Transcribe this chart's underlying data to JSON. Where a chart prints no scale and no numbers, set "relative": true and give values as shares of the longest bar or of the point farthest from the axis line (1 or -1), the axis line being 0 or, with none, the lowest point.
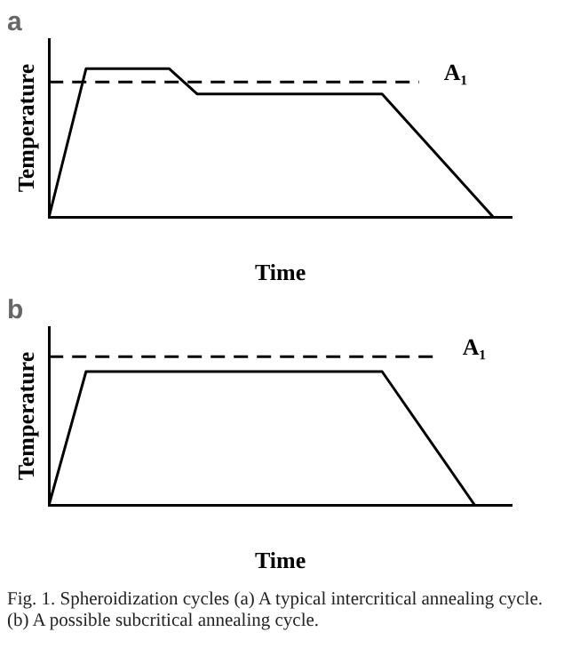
{
  "chart_data": [
    {
      "type": "line",
      "title": "a",
      "xlabel": "Time",
      "ylabel": "Temperature",
      "relative": true,
      "grid": false,
      "legend": false,
      "marker": "none",
      "categories": [
        null,
        null,
        null,
        null,
        null,
        null,
        null,
        null,
        null,
        null,
        null,
        null,
        null,
        null,
        null,
        null,
        null,
        null,
        null,
        null,
        null,
        null,
        null,
        null,
        null,
        null,
        null,
        null,
        null,
        null,
        null,
        null,
        null,
        null,
        null,
        null,
        null,
        null,
        null,
        null,
        null,
        null,
        null,
        null,
        null,
        null,
        null,
        null,
        null,
        null,
        null
      ],
      "series": [
        {
          "values": [
            0,
            null,
            null,
            null,
            1,
            null,
            null,
            null,
            null,
            null,
            null,
            null,
            null,
            1,
            null,
            null,
            0.83,
            null,
            null,
            null,
            null,
            null,
            null,
            null,
            null,
            null,
            null,
            null,
            null,
            null,
            null,
            null,
            null,
            null,
            null,
            null,
            0.83,
            null,
            null,
            null,
            null,
            null,
            null,
            null,
            null,
            null,
            null,
            null,
            0,
            null,
            null
          ],
          "color": "#000000",
          "line_style": "solid"
        },
        {
          "name": "A₁",
          "values": [
            0.91,
            null,
            null,
            null,
            null,
            null,
            null,
            null,
            null,
            null,
            null,
            null,
            null,
            null,
            null,
            null,
            null,
            null,
            null,
            null,
            null,
            null,
            null,
            null,
            null,
            null,
            null,
            null,
            null,
            null,
            null,
            null,
            null,
            null,
            null,
            null,
            null,
            null,
            null,
            null,
            0.91,
            null,
            null,
            null,
            null,
            null,
            null,
            null,
            null,
            null,
            null
          ],
          "color": "#000000",
          "line_style": "dashed"
        }
      ]
    },
    {
      "type": "line",
      "title": "b",
      "xlabel": "Time",
      "ylabel": "Temperature",
      "relative": true,
      "grid": false,
      "legend": false,
      "marker": "none",
      "categories": [
        null,
        null,
        null,
        null,
        null,
        null,
        null,
        null,
        null,
        null,
        null,
        null,
        null,
        null,
        null,
        null,
        null,
        null,
        null,
        null,
        null,
        null,
        null,
        null,
        null,
        null,
        null,
        null,
        null,
        null,
        null,
        null,
        null,
        null,
        null,
        null,
        null,
        null,
        null,
        null,
        null,
        null,
        null,
        null,
        null,
        null,
        null,
        null,
        null,
        null,
        null
      ],
      "series": [
        {
          "values": [
            0,
            null,
            null,
            null,
            0.9,
            null,
            null,
            null,
            null,
            null,
            null,
            null,
            null,
            null,
            null,
            null,
            null,
            null,
            null,
            null,
            null,
            null,
            null,
            null,
            null,
            null,
            null,
            null,
            null,
            null,
            null,
            null,
            null,
            null,
            null,
            null,
            0.9,
            null,
            null,
            null,
            null,
            null,
            null,
            null,
            null,
            null,
            0,
            null,
            null,
            null,
            null
          ],
          "color": "#000000",
          "line_style": "solid"
        },
        {
          "name": "A₁",
          "values": [
            1,
            null,
            null,
            null,
            null,
            null,
            null,
            null,
            null,
            null,
            null,
            null,
            null,
            null,
            null,
            null,
            null,
            null,
            null,
            null,
            null,
            null,
            null,
            null,
            null,
            null,
            null,
            null,
            null,
            null,
            null,
            null,
            null,
            null,
            null,
            null,
            null,
            null,
            null,
            null,
            null,
            null,
            1,
            null,
            null,
            null,
            null,
            null,
            null,
            null,
            null
          ],
          "color": "#000000",
          "line_style": "dashed"
        }
      ],
      "annotations": [
        "Fig. 1. Spheroidization cycles (a) A typical intercritical annealing cycle. (b) A possible subcritical annealing cycle."
      ]
    }
  ]
}
